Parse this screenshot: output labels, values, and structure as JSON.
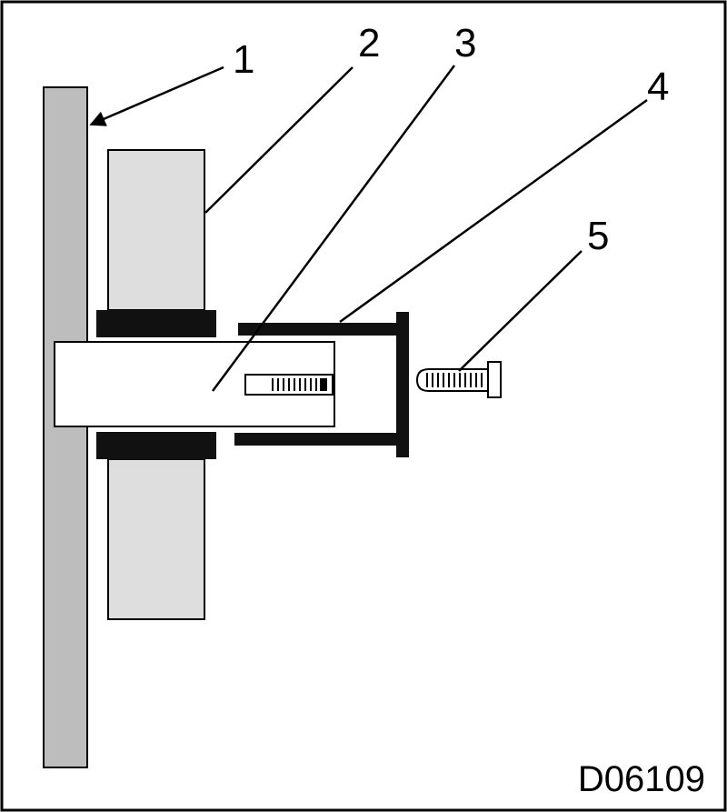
{
  "figure": {
    "code": "D06109",
    "callouts": [
      "1",
      "2",
      "3",
      "4",
      "5"
    ]
  },
  "colors": {
    "frame": "#000000",
    "wall_plate": "#bdbdbd",
    "block": "#dedede",
    "pad": "#111111",
    "bracket": "#111111"
  }
}
